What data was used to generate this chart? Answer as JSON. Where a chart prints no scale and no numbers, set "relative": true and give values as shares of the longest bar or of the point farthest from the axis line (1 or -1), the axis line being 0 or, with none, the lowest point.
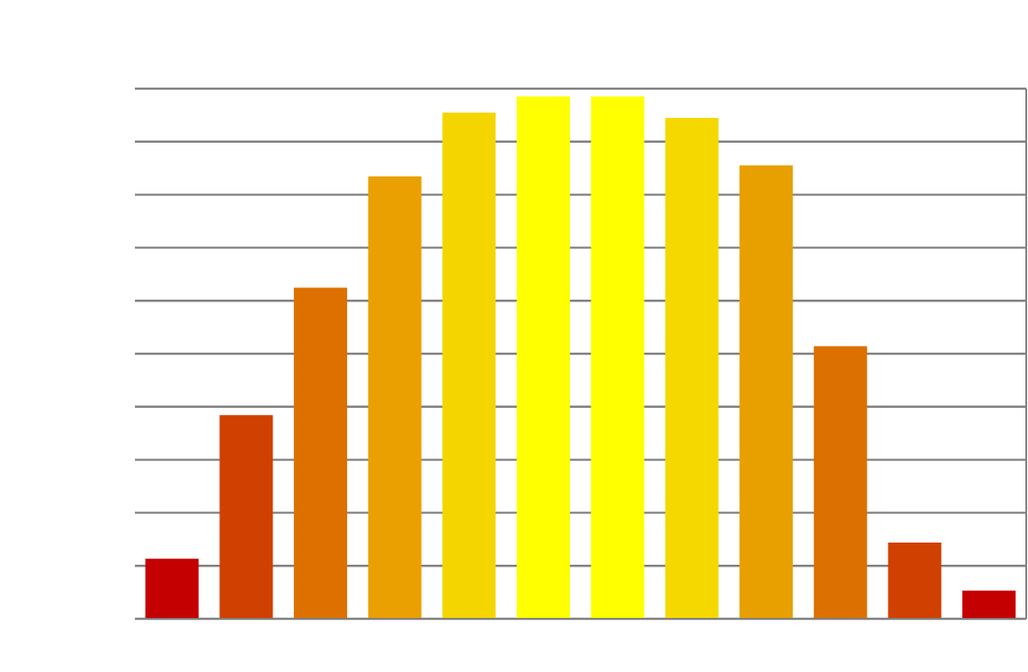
{
  "chart_data": {
    "type": "bar",
    "relative": true,
    "grid": "y",
    "categories": [
      null,
      null,
      null,
      null,
      null,
      null,
      null,
      null,
      null,
      null,
      null,
      null
    ],
    "values": [
      0.115,
      0.39,
      0.634,
      0.847,
      0.969,
      1,
      1,
      0.959,
      0.868,
      0.522,
      0.146,
      0.054
    ],
    "colors": [
      "#c40000",
      "#d04000",
      "#de7000",
      "#eaa000",
      "#f5d500",
      "#ffff00",
      "#ffff00",
      "#f5d800",
      "#e8a000",
      "#dc7000",
      "#d04000",
      "#c40000"
    ]
  }
}
